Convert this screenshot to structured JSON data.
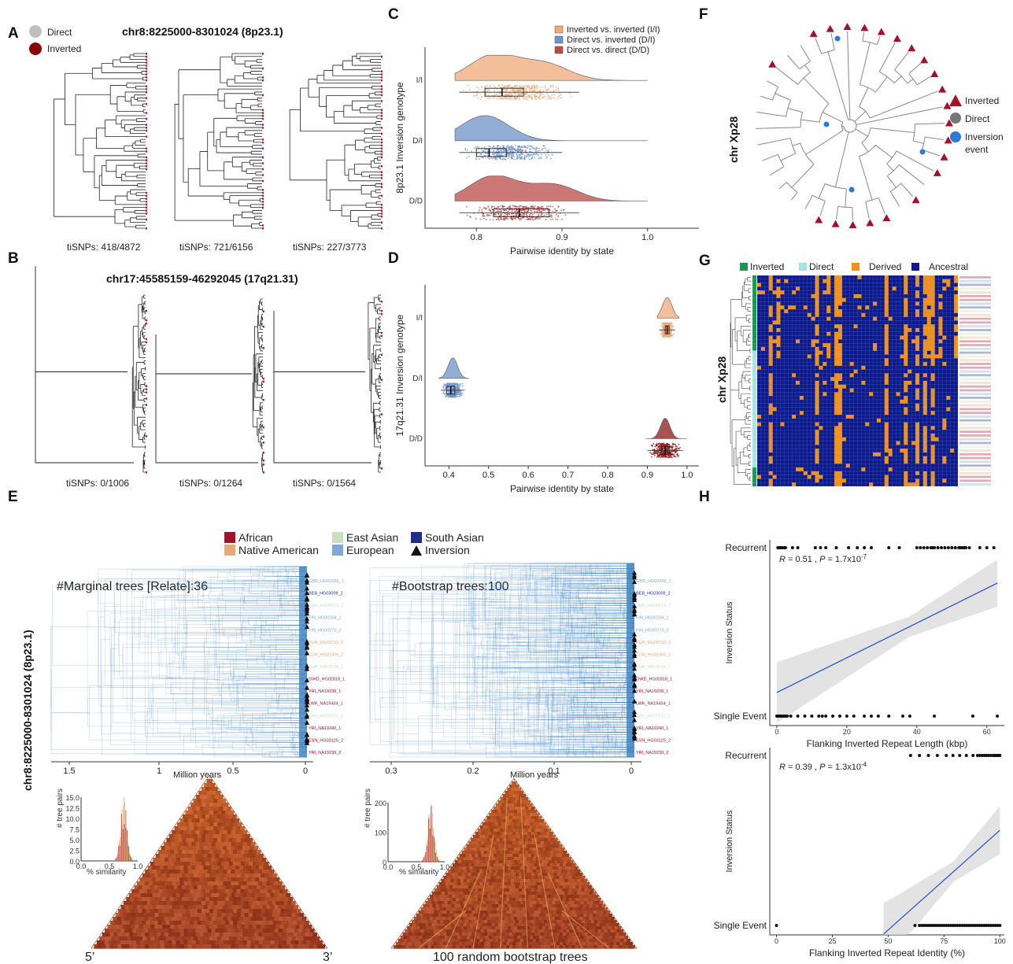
{
  "panels": {
    "A": {
      "letter": "A",
      "title": "chr8:8225000-8301024 (8p23.1)",
      "legend": [
        {
          "label": "Direct",
          "color": "#c0c0c0"
        },
        {
          "label": "Inverted",
          "color": "#8b0000"
        }
      ],
      "trees": [
        "tiSNPs: 418/4872",
        "tiSNPs: 721/6156",
        "tiSNPs: 227/3773"
      ]
    },
    "B": {
      "letter": "B",
      "title": "chr17:45585159-46292045 (17q21.31)",
      "trees": [
        "tiSNPs: 0/1006",
        "tiSNPs: 0/1264",
        "tiSNPs: 0/1564"
      ]
    },
    "C": {
      "letter": "C"
    },
    "D": {
      "letter": "D"
    },
    "E": {
      "letter": "E",
      "ylabel": "chr8:8225000-8301024 (8p23.1)",
      "legend": [
        {
          "label": "African",
          "color": "#a5102a",
          "type": "square"
        },
        {
          "label": "East Asian",
          "color": "#c8dfc0",
          "type": "square"
        },
        {
          "label": "South Asian",
          "color": "#1f2b88",
          "type": "square"
        },
        {
          "label": "Native American",
          "color": "#e8a878",
          "type": "square"
        },
        {
          "label": "European",
          "color": "#7ea9d4",
          "type": "square"
        },
        {
          "label": "Inversion",
          "color": "#111111",
          "type": "triangle"
        }
      ],
      "left_title": "#Marginal trees [Relate]:36",
      "right_title": "#Bootstrap trees:100",
      "left_axis": {
        "ticks": [
          "1.5",
          "1",
          "0.5",
          "0"
        ],
        "label": "Million years"
      },
      "right_axis": {
        "ticks": [
          "0.3",
          "0.2",
          "0.1",
          "0"
        ],
        "label": "Million years"
      },
      "tips": [
        "GBR_HG03096_1",
        "BEB_HG03009_2",
        "CHS_HG00513_2",
        "FIN_HG00268_1",
        "FIN_HG00273_2",
        "PUR_HG00733_2",
        "CLM_HG01456_2",
        "CHB_NA18534_2",
        "GWD_HG02818_1",
        "YRI_NA19238_1",
        "LWK_NA19434_1",
        "KHV_HG02512_1",
        "YRI_NA19240_1",
        "ESN_HG03125_2",
        "YRI_NA19239_2"
      ],
      "hist_ylabel": "# tree pairs",
      "hist_xlabel": "% similarity",
      "hist_left": {
        "yticks": [
          "15.0",
          "12.5",
          "10.0",
          "7.5",
          "5.0",
          "2.5",
          "0.0"
        ],
        "xticks": [
          "0.0",
          "0.5",
          "1.0"
        ]
      },
      "hist_right": {
        "yticks": [
          "200",
          "100",
          "0"
        ],
        "xticks": [
          "0.0",
          "0.5",
          "1.0"
        ]
      },
      "tri_left_labels": [
        "5’",
        "3’"
      ],
      "tri_right_label": "100 random bootstrap trees"
    },
    "F": {
      "letter": "F",
      "ylabel": "chr Xp28",
      "legend": [
        {
          "label": "Inverted",
          "color": "#a5102a",
          "type": "triangle"
        },
        {
          "label": "Direct",
          "color": "#777777",
          "type": "circle"
        },
        {
          "label": "Inversion",
          "color": "#2b7bd6",
          "type": "circle"
        },
        {
          "label": "event",
          "color": "",
          "type": "text"
        }
      ]
    },
    "G": {
      "letter": "G",
      "ylabel": "chr Xp28",
      "legend": [
        {
          "label": "Inverted",
          "color": "#1a9850"
        },
        {
          "label": "Direct",
          "color": "#a6e3e9"
        },
        {
          "label": "Derived",
          "color": "#f39019"
        },
        {
          "label": "Ancestral",
          "color": "#0b1a8c"
        }
      ]
    },
    "H": {
      "letter": "H"
    }
  },
  "chart_data": [
    {
      "id": "C",
      "type": "scatter",
      "subtype": "raincloud",
      "ylabel": "8p23.1 Inversion genotype",
      "xlabel": "Pairwise identity by state",
      "xticks": [
        0.8,
        0.9,
        1.0
      ],
      "xlim": [
        0.74,
        1.06
      ],
      "categories": [
        "I/I",
        "D/I",
        "D/D"
      ],
      "legend_entries": [
        "Inverted vs. inverted (I/I)",
        "Direct vs. inverted (D/I)",
        "Direct vs. direct (D/D)"
      ],
      "colors": [
        "#efaa78",
        "#6f93c8",
        "#b94a48"
      ],
      "legend": "top-right",
      "series": [
        {
          "category": "I/I",
          "q1": 0.81,
          "median": 0.83,
          "q3": 0.855,
          "whisker_low": 0.78,
          "whisker_high": 0.92,
          "density_peaks": [
            0.82,
            0.88
          ]
        },
        {
          "category": "D/I",
          "q1": 0.8,
          "median": 0.815,
          "q3": 0.835,
          "whisker_low": 0.78,
          "whisker_high": 0.9,
          "density_peaks": [
            0.81
          ]
        },
        {
          "category": "D/D",
          "q1": 0.82,
          "median": 0.85,
          "q3": 0.885,
          "whisker_low": 0.78,
          "whisker_high": 0.92,
          "density_peaks": [
            0.82,
            0.89
          ]
        }
      ]
    },
    {
      "id": "D",
      "type": "scatter",
      "subtype": "raincloud",
      "ylabel": "17q21.31 Inversion genotype",
      "xlabel": "Pairwise identity by state",
      "xticks": [
        0.4,
        0.5,
        0.6,
        0.7,
        0.8,
        0.9,
        1.0
      ],
      "xlim": [
        0.34,
        1.03
      ],
      "categories": [
        "I/I",
        "D/I",
        "D/D"
      ],
      "colors": [
        "#efaa78",
        "#6f93c8",
        "#8b1a1a"
      ],
      "series": [
        {
          "category": "I/I",
          "q1": 0.945,
          "median": 0.95,
          "q3": 0.955,
          "whisker_low": 0.93,
          "whisker_high": 0.97,
          "density_peaks": [
            0.95
          ]
        },
        {
          "category": "D/I",
          "q1": 0.395,
          "median": 0.405,
          "q3": 0.415,
          "whisker_low": 0.38,
          "whisker_high": 0.44,
          "density_peaks": [
            0.41
          ]
        },
        {
          "category": "D/D",
          "q1": 0.935,
          "median": 0.945,
          "q3": 0.955,
          "whisker_low": 0.9,
          "whisker_high": 0.99,
          "density_peaks": [
            0.945
          ]
        }
      ]
    },
    {
      "id": "H-top",
      "type": "scatter",
      "xlabel": "Flanking Inverted Repeat Length (kbp)",
      "ylabel": "Inversion Status",
      "categories": [
        "Single Event",
        "Recurrent"
      ],
      "xticks": [
        0,
        20,
        40,
        60
      ],
      "xlim": [
        -2,
        65
      ],
      "annotation": {
        "r": "0.51",
        "p": "1.7x10",
        "p_exp": "-7"
      },
      "fit": {
        "x0": 0,
        "y0": 0.14,
        "x1": 63,
        "y1": 0.79
      },
      "points_recurrent": [
        0.3,
        0.6,
        0.9,
        1.2,
        1.6,
        2.1,
        2.5,
        4.5,
        6,
        11,
        12.5,
        14,
        17,
        20.5,
        23,
        25,
        27,
        32,
        35,
        40,
        41,
        42,
        43,
        44,
        44.5,
        45,
        46,
        47,
        48,
        49,
        50,
        51,
        52,
        52.5,
        53,
        53.5,
        54,
        55,
        58,
        60,
        62
      ],
      "points_single": [
        0,
        0.3,
        0.6,
        0.9,
        1.2,
        1.5,
        1.8,
        2.2,
        2.6,
        3,
        4,
        6,
        8,
        10,
        12,
        13,
        14,
        16,
        18,
        20,
        22,
        25,
        27,
        29,
        32,
        36,
        38,
        45,
        56,
        63
      ]
    },
    {
      "id": "H-bottom",
      "type": "scatter",
      "xlabel": "Flanking Inverted Repeat Identity (%)",
      "ylabel": "Inversion Status",
      "categories": [
        "Single Event",
        "Recurrent"
      ],
      "xticks": [
        0,
        25,
        50,
        75,
        100
      ],
      "xlim": [
        -3,
        102
      ],
      "annotation": {
        "r": "0.39",
        "p": "1.3x10",
        "p_exp": "-4"
      },
      "fit": {
        "x0": 48,
        "y0": -0.05,
        "x1": 100,
        "y1": 0.56
      },
      "points_recurrent": [
        60,
        64,
        68,
        72,
        76,
        79,
        82,
        85,
        88,
        90,
        91,
        92,
        93,
        94,
        95,
        96,
        97,
        97.5,
        98,
        98.5,
        99,
        99.5,
        100
      ],
      "points_single": [
        0,
        62,
        64,
        65,
        66,
        67,
        68,
        69,
        70,
        71,
        72,
        73,
        74,
        75,
        76,
        77,
        78,
        79,
        80,
        81,
        82,
        83,
        84,
        85,
        86,
        87,
        88,
        89,
        90,
        91,
        92,
        93,
        94,
        95,
        96,
        97,
        98,
        99,
        100
      ]
    }
  ]
}
